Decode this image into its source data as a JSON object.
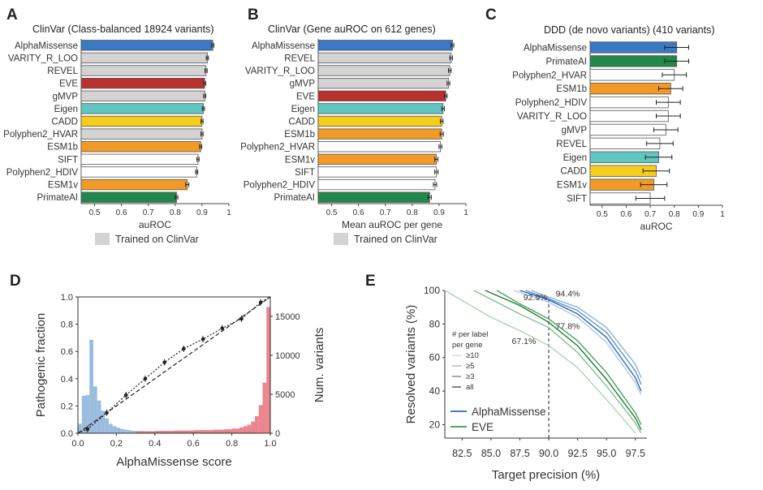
{
  "panels": {
    "A": {
      "label": "A",
      "title": "ClinVar (Class-balanced 18924 variants)"
    },
    "B": {
      "label": "B",
      "title": "ClinVar (Gene auROC on 612 genes)"
    },
    "C": {
      "label": "C",
      "title": "DDD (de novo variants) (410 variants)"
    },
    "D": {
      "label": "D"
    },
    "E": {
      "label": "E"
    }
  },
  "legend_trained": "Trained on ClinVar",
  "colors": {
    "AlphaMissense": "#3a78c3",
    "EVE": "#b8312f",
    "Eigen": "#5fc6c0",
    "CADD": "#f5cd1a",
    "ESM1b": "#f29a28",
    "ESM1v": "#f29a28",
    "PrimateAI": "#22874a",
    "gray": "#d3d3d3",
    "white": "#ffffff",
    "red": "#e8707a",
    "blue_hist": "#8fb5da",
    "green_line": "#3a9a4f"
  },
  "chart_data": [
    {
      "id": "A",
      "type": "bar",
      "orientation": "horizontal",
      "title": "ClinVar (Class-balanced 18924 variants)",
      "xlabel": "auROC",
      "xlim": [
        0.45,
        1.0
      ],
      "xticks": [
        "0.5",
        "0.6",
        "0.7",
        "0.8",
        "0.9",
        "1"
      ],
      "categories": [
        "AlphaMissense",
        "VARITY_R_LOO",
        "REVEL",
        "EVE",
        "gMVP",
        "Eigen",
        "CADD",
        "Polyphen2_HVAR",
        "ESM1b",
        "SIFT",
        "Polyphen2_HDIV",
        "ESM1v",
        "PrimateAI"
      ],
      "values": [
        0.94,
        0.92,
        0.915,
        0.91,
        0.91,
        0.905,
        0.9,
        0.9,
        0.895,
        0.885,
        0.88,
        0.845,
        0.805
      ],
      "errors": [
        0.004,
        0.004,
        0.004,
        0.004,
        0.004,
        0.004,
        0.004,
        0.004,
        0.004,
        0.004,
        0.004,
        0.006,
        0.005
      ],
      "fills": [
        "AlphaMissense",
        "gray",
        "gray",
        "EVE",
        "gray",
        "Eigen",
        "CADD",
        "gray",
        "ESM1b",
        "white",
        "white",
        "ESM1v",
        "PrimateAI"
      ]
    },
    {
      "id": "B",
      "type": "bar",
      "orientation": "horizontal",
      "title": "ClinVar (Gene auROC on 612 genes)",
      "xlabel": "Mean auROC per gene",
      "xlim": [
        0.45,
        1.0
      ],
      "xticks": [
        "0.5",
        "0.6",
        "0.7",
        "0.8",
        "0.9",
        "1"
      ],
      "categories": [
        "AlphaMissense",
        "REVEL",
        "VARITY_R_LOO",
        "gMVP",
        "EVE",
        "Eigen",
        "CADD",
        "ESM1b",
        "Polyphen2_HVAR",
        "ESM1v",
        "SIFT",
        "Polyphen2_HDIV",
        "PrimateAI"
      ],
      "values": [
        0.95,
        0.945,
        0.94,
        0.935,
        0.925,
        0.915,
        0.91,
        0.91,
        0.905,
        0.89,
        0.89,
        0.885,
        0.865
      ],
      "errors": [
        0.005,
        0.005,
        0.005,
        0.005,
        0.005,
        0.005,
        0.005,
        0.006,
        0.005,
        0.006,
        0.006,
        0.006,
        0.006
      ],
      "fills": [
        "AlphaMissense",
        "gray",
        "gray",
        "gray",
        "EVE",
        "Eigen",
        "CADD",
        "ESM1b",
        "white",
        "ESM1v",
        "white",
        "white",
        "PrimateAI"
      ]
    },
    {
      "id": "C",
      "type": "bar",
      "orientation": "horizontal",
      "title": "DDD (de novo variants) (410 variants)",
      "xlabel": "auROC",
      "xlim": [
        0.45,
        1.0
      ],
      "xticks": [
        "0.5",
        "0.6",
        "0.7",
        "0.8",
        "0.9",
        "1"
      ],
      "categories": [
        "AlphaMissense",
        "PrimateAI",
        "Polyphen2_HVAR",
        "ESM1b",
        "Polyphen2_HDIV",
        "VARITY_R_LOO",
        "gMVP",
        "REVEL",
        "Eigen",
        "CADD",
        "ESM1v",
        "SIFT"
      ],
      "values": [
        0.81,
        0.81,
        0.8,
        0.785,
        0.775,
        0.775,
        0.765,
        0.74,
        0.735,
        0.725,
        0.715,
        0.7
      ],
      "errors": [
        0.05,
        0.05,
        0.05,
        0.05,
        0.05,
        0.05,
        0.05,
        0.055,
        0.055,
        0.055,
        0.055,
        0.06
      ],
      "fills": [
        "AlphaMissense",
        "PrimateAI",
        "white",
        "ESM1b",
        "white",
        "white",
        "white",
        "white",
        "Eigen",
        "CADD",
        "ESM1v",
        "white"
      ]
    },
    {
      "id": "D",
      "type": "scatter",
      "xlabel": "AlphaMissense score",
      "ylabel": "Pathogenic fraction",
      "y2label": "Num. variants",
      "xlim": [
        0.0,
        1.0
      ],
      "ylim": [
        0.0,
        1.0
      ],
      "y2lim": [
        0,
        17500
      ],
      "xticks": [
        "0.0",
        "0.2",
        "0.4",
        "0.6",
        "0.8",
        "1.0"
      ],
      "yticks": [
        "0.0",
        "0.2",
        "0.4",
        "0.6",
        "0.8",
        "1.0"
      ],
      "y2ticks": [
        "0",
        "5000",
        "10000",
        "15000"
      ],
      "calibration_points": {
        "x": [
          0.05,
          0.15,
          0.25,
          0.35,
          0.45,
          0.55,
          0.65,
          0.75,
          0.85,
          0.95
        ],
        "y": [
          0.03,
          0.15,
          0.28,
          0.4,
          0.52,
          0.62,
          0.69,
          0.77,
          0.84,
          0.96
        ]
      },
      "diagonal": {
        "x": [
          0,
          1
        ],
        "y": [
          0,
          1
        ]
      },
      "benign_hist": {
        "bin_width": 0.02,
        "x": [
          0.0,
          0.02,
          0.04,
          0.06,
          0.08,
          0.1,
          0.12,
          0.14,
          0.16,
          0.18,
          0.2,
          0.22,
          0.24,
          0.26,
          0.28,
          0.3,
          0.34,
          0.4,
          0.5,
          0.6,
          0.7,
          0.8,
          0.9
        ],
        "counts": [
          1200,
          4800,
          4900,
          12000,
          6000,
          4200,
          2900,
          1900,
          1200,
          900,
          700,
          550,
          450,
          380,
          320,
          280,
          250,
          230,
          200,
          180,
          170,
          160,
          150
        ]
      },
      "pathogenic_hist": {
        "bin_width": 0.02,
        "x": [
          0.3,
          0.4,
          0.5,
          0.6,
          0.7,
          0.76,
          0.8,
          0.84,
          0.86,
          0.88,
          0.9,
          0.92,
          0.94,
          0.96,
          0.98
        ],
        "counts": [
          250,
          300,
          350,
          400,
          450,
          500,
          600,
          750,
          900,
          1100,
          1500,
          2200,
          3600,
          6500,
          16200
        ]
      }
    },
    {
      "id": "E",
      "type": "line",
      "xlabel": "Target precision (%)",
      "ylabel": "Resolved variants (%)",
      "xlim": [
        81,
        98.5
      ],
      "ylim": [
        12,
        100
      ],
      "xticks": [
        "82.5",
        "85.0",
        "87.5",
        "90.0",
        "92.5",
        "95.0",
        "97.5"
      ],
      "yticks": [
        "100",
        "80",
        "60",
        "40",
        "20"
      ],
      "vline_x": 90,
      "annotations": [
        "92.9%",
        "94.4%",
        "77.8%",
        "67.1%"
      ],
      "legend_title": "# per label\nper gene",
      "legend_levels": [
        "≥10",
        "≥5",
        "≥3",
        "all"
      ],
      "series": [
        {
          "name": "AlphaMissense",
          "x": [
            87.5,
            90,
            92.5,
            95,
            97.5,
            98
          ],
          "y": [
            100,
            94.4,
            86,
            72,
            48,
            40
          ]
        },
        {
          "name": "AlphaMissense",
          "x": [
            88,
            90,
            92.5,
            95,
            97.5,
            98
          ],
          "y": [
            100,
            95,
            88,
            75,
            52,
            44
          ]
        },
        {
          "name": "AlphaMissense",
          "x": [
            88.5,
            90,
            92.5,
            95,
            97.5,
            98
          ],
          "y": [
            100,
            96,
            90,
            78,
            56,
            48
          ]
        },
        {
          "name": "AlphaMissense",
          "x": [
            87,
            90,
            92.5,
            95,
            97.5,
            98
          ],
          "y": [
            100,
            92.9,
            84,
            69,
            45,
            38
          ]
        },
        {
          "name": "EVE",
          "x": [
            84.5,
            87.5,
            90,
            92.5,
            95,
            97.5,
            98
          ],
          "y": [
            100,
            91,
            81,
            67,
            47,
            24,
            17
          ]
        },
        {
          "name": "EVE",
          "x": [
            85.5,
            87.5,
            90,
            92.5,
            95,
            97.5,
            98
          ],
          "y": [
            100,
            92,
            83,
            70,
            51,
            27,
            20
          ]
        },
        {
          "name": "EVE",
          "x": [
            83.5,
            87.5,
            90,
            92.5,
            95,
            97.5,
            98
          ],
          "y": [
            100,
            86,
            77.8,
            63,
            43,
            21,
            15
          ]
        },
        {
          "name": "EVE",
          "x": [
            81,
            85,
            87.5,
            90,
            92.5,
            95,
            97.5
          ],
          "y": [
            100,
            84,
            76,
            67.1,
            54,
            35,
            15
          ]
        }
      ],
      "legend": [
        "AlphaMissense",
        "EVE"
      ]
    }
  ]
}
